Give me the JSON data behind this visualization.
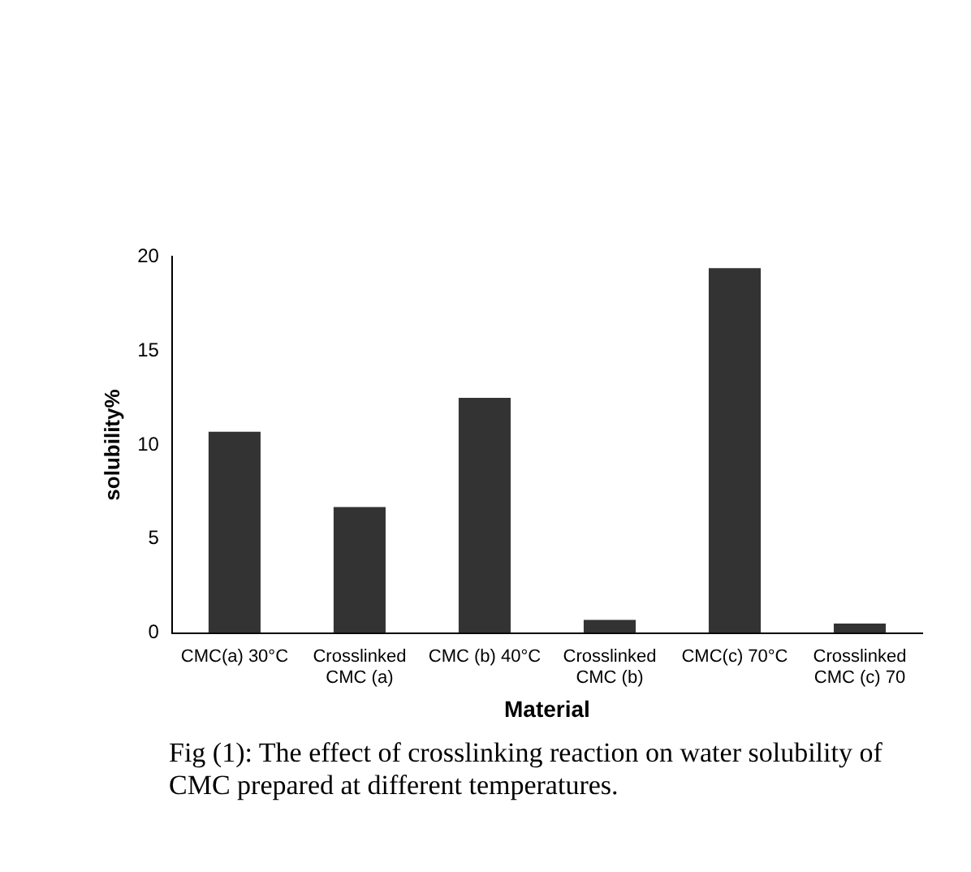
{
  "chart_data": {
    "type": "bar",
    "xlabel": "Material",
    "ylabel": "solubility%",
    "categories": [
      "CMC(a) 30°C",
      "Crosslinked CMC (a)",
      "CMC (b) 40°C",
      "Crosslinked CMC (b)",
      "CMC(c) 70°C",
      "Crosslinked CMC (c) 70"
    ],
    "values": [
      10.7,
      6.7,
      12.5,
      0.7,
      19.4,
      0.5
    ],
    "color": "#333333",
    "ylim": [
      0,
      20
    ],
    "yticks": [
      0,
      5,
      10,
      15,
      20
    ],
    "grid": false,
    "legend": false,
    "annotations": [
      "Fig (1): The effect of crosslinking reaction on water solubility of CMC prepared at different temperatures."
    ]
  }
}
